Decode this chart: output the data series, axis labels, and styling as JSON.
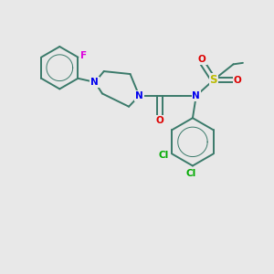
{
  "bg_color": "#e8e8e8",
  "bond_color": "#3a7a6a",
  "bond_width": 1.4,
  "N_color": "#0000ee",
  "O_color": "#dd0000",
  "S_color": "#bbbb00",
  "F_color": "#dd00dd",
  "Cl_color": "#00aa00",
  "font_size": 7.5,
  "xlim": [
    0,
    10
  ],
  "ylim": [
    0,
    10
  ]
}
